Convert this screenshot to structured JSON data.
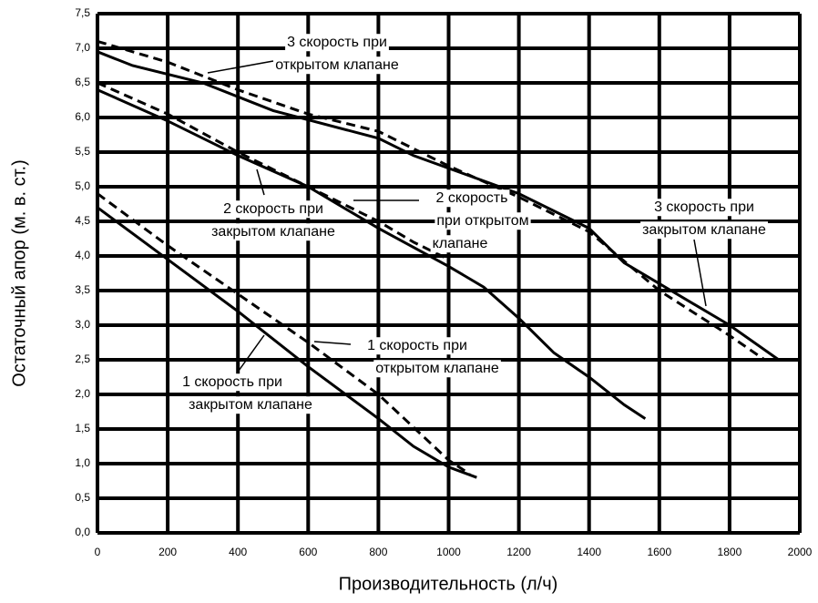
{
  "chart_data": {
    "type": "line",
    "xlabel": "Производительность (л/ч)",
    "ylabel": "Остаточный апор (м. в. ст.)",
    "xlim": [
      0,
      2000
    ],
    "ylim": [
      0,
      7.5
    ],
    "xticks": [
      0,
      200,
      400,
      600,
      800,
      1000,
      1200,
      1400,
      1600,
      1800,
      2000
    ],
    "yticks": [
      {
        "value": 0,
        "label": "0,0"
      },
      {
        "value": 0.5,
        "label": "0,5"
      },
      {
        "value": 1,
        "label": "1,0"
      },
      {
        "value": 1.5,
        "label": "1,5"
      },
      {
        "value": 2,
        "label": "2,0"
      },
      {
        "value": 2.5,
        "label": "2,5"
      },
      {
        "value": 3,
        "label": "3,0"
      },
      {
        "value": 3.5,
        "label": "3,5"
      },
      {
        "value": 4,
        "label": "4,0"
      },
      {
        "value": 4.5,
        "label": "4,5"
      },
      {
        "value": 5,
        "label": "5,0"
      },
      {
        "value": 5.5,
        "label": "5,5"
      },
      {
        "value": 6,
        "label": "6,0"
      },
      {
        "value": 6.5,
        "label": "6,5"
      },
      {
        "value": 7,
        "label": "7,0"
      },
      {
        "value": 7.5,
        "label": "7,5"
      }
    ],
    "grid": true,
    "series": [
      {
        "color": "#000000",
        "style": "solid",
        "x": [
          0,
          200,
          400,
          600,
          800,
          900,
          1000,
          1080
        ],
        "values": [
          4.7,
          3.95,
          3.2,
          2.4,
          1.65,
          1.25,
          0.95,
          0.8
        ]
      },
      {
        "color": "#000000",
        "style": "dashed",
        "x": [
          0,
          200,
          400,
          600,
          800,
          1000,
          1060
        ],
        "values": [
          4.9,
          4.15,
          3.45,
          2.75,
          2.0,
          1.05,
          0.85
        ]
      },
      {
        "color": "#000000",
        "style": "solid",
        "x": [
          0,
          200,
          400,
          600,
          800,
          1000,
          1100,
          1200,
          1300,
          1400,
          1500,
          1560
        ],
        "values": [
          6.4,
          5.95,
          5.45,
          5.0,
          4.4,
          3.85,
          3.55,
          3.1,
          2.6,
          2.25,
          1.85,
          1.65
        ]
      },
      {
        "color": "#000000",
        "style": "dashed",
        "x": [
          0,
          200,
          400,
          600,
          800,
          900,
          1000
        ],
        "values": [
          6.5,
          6.05,
          5.5,
          5.0,
          4.5,
          4.2,
          3.95
        ]
      },
      {
        "color": "#000000",
        "style": "solid",
        "x": [
          0,
          100,
          300,
          500,
          800,
          900,
          1200,
          1400,
          1500,
          1800,
          1940
        ],
        "values": [
          6.95,
          6.75,
          6.5,
          6.1,
          5.7,
          5.45,
          4.9,
          4.4,
          3.9,
          3.0,
          2.5
        ]
      },
      {
        "color": "#000000",
        "style": "dashed",
        "x": [
          0,
          200,
          400,
          600,
          800,
          1000,
          1200,
          1400,
          1600,
          1800,
          1900
        ],
        "values": [
          7.1,
          6.8,
          6.4,
          6.05,
          5.8,
          5.3,
          4.85,
          4.35,
          3.5,
          2.85,
          2.5
        ]
      }
    ],
    "annotations": [
      [
        "3 скорость при",
        "открытом клапане"
      ],
      [
        "2 скорость при",
        "закрытом клапане"
      ],
      [
        "2 скорость",
        "при открытом",
        "клапане"
      ],
      [
        "3 скорость при",
        "закрытом клапане"
      ],
      [
        "1 скорость при",
        "открытом клапане"
      ],
      [
        "1 скорость при",
        "закрытом клапане"
      ]
    ]
  }
}
